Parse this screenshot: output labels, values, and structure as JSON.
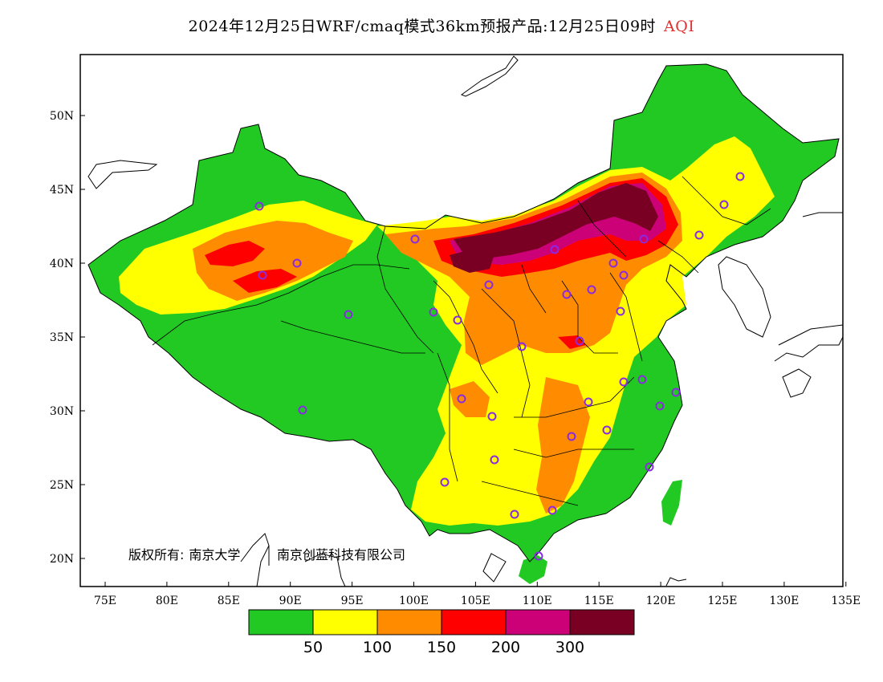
{
  "title": {
    "text": "2024年12月25日WRF/cmaq模式36km预报产品:12月25日09时",
    "variable": "AQI"
  },
  "axes": {
    "longitude_ticks": [
      "75E",
      "80E",
      "85E",
      "90E",
      "95E",
      "100E",
      "105E",
      "110E",
      "115E",
      "120E",
      "125E",
      "130E",
      "135E"
    ],
    "latitude_ticks": [
      "50N",
      "45N",
      "40N",
      "35N",
      "30N",
      "25N",
      "20N"
    ]
  },
  "copyright": {
    "label": "版权所有:",
    "org1": "南京大学",
    "org2": "南京创蓝科技有限公司"
  },
  "legend": {
    "colors": [
      "#22c922",
      "#ffff00",
      "#ff8c00",
      "#ff0000",
      "#cc0077",
      "#7a0023"
    ],
    "labels": [
      "50",
      "100",
      "150",
      "200",
      "300"
    ]
  },
  "map_colors": {
    "green": "#22c922",
    "yellow": "#ffff00",
    "orange": "#ff8c00",
    "red": "#ff0000",
    "purple": "#cc0077",
    "maroon": "#7a0023",
    "marker": "#8a2be2"
  }
}
